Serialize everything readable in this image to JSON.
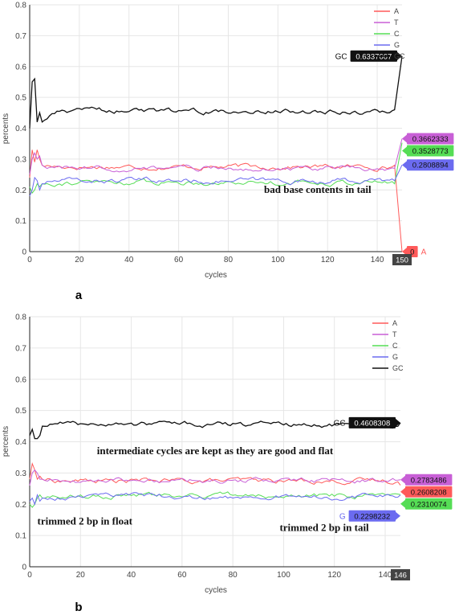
{
  "chart_data": [
    {
      "panel_label": "a",
      "type": "line",
      "xlabel": "cycles",
      "ylabel": "percents",
      "xlim": [
        0,
        150
      ],
      "ylim": [
        0,
        0.8
      ],
      "xticks": [
        "0",
        "20",
        "40",
        "60",
        "80",
        "100",
        "120",
        "140"
      ],
      "yticks": [
        "0",
        "0.1",
        "0.2",
        "0.3",
        "0.4",
        "0.5",
        "0.6",
        "0.7",
        "0.8"
      ],
      "grid": true,
      "legend_position": "top-right",
      "series": [
        {
          "name": "A",
          "color": "#ff5a5a",
          "base": 0.275,
          "start": [
            0.24,
            0.33,
            0.29,
            0.33,
            0.3,
            0.28
          ],
          "end": [
            [
              147,
              0.28
            ],
            [
              150,
              0
            ]
          ]
        },
        {
          "name": "T",
          "color": "#c85fd6",
          "base": 0.27,
          "start": [
            0.25,
            0.3,
            0.32,
            0.3,
            0.31,
            0.28
          ],
          "end": [
            [
              147,
              0.27
            ],
            [
              150,
              0.3662333
            ]
          ]
        },
        {
          "name": "C",
          "color": "#55dd55",
          "base": 0.225,
          "start": [
            0.21,
            0.19,
            0.2,
            0.22,
            0.21,
            0.22
          ],
          "end": [
            [
              147,
              0.22
            ],
            [
              150,
              0.3528773
            ]
          ]
        },
        {
          "name": "G",
          "color": "#6b6bf0",
          "base": 0.23,
          "start": [
            0.18,
            0.2,
            0.24,
            0.23,
            0.2,
            0.22
          ],
          "end": [
            [
              147,
              0.23
            ],
            [
              150,
              0.2808894
            ]
          ]
        },
        {
          "name": "GC",
          "color": "#111111",
          "base": 0.455,
          "start": [
            0.4,
            0.55,
            0.56,
            0.42,
            0.45,
            0.42
          ],
          "end": [
            [
              147,
              0.46
            ],
            [
              150,
              0.6337667
            ]
          ]
        }
      ],
      "hover_labels": [
        {
          "series": "GC",
          "value": "0.6337667",
          "side": "left"
        },
        {
          "series": "T",
          "value": "0.3662333",
          "side": "right"
        },
        {
          "series": "C",
          "value": "0.3528773",
          "side": "right"
        },
        {
          "series": "G",
          "value": "0.2808894",
          "side": "right"
        },
        {
          "series": "A",
          "value": "0",
          "side": "right"
        }
      ],
      "x_hover": "150",
      "annotations": [
        {
          "text": "bad base contents in tail",
          "x": 116,
          "y": 0.19
        }
      ]
    },
    {
      "panel_label": "b",
      "type": "line",
      "xlabel": "cycles",
      "ylabel": "percents",
      "xlim": [
        0,
        146
      ],
      "ylim": [
        0,
        0.8
      ],
      "xticks": [
        "0",
        "20",
        "40",
        "60",
        "80",
        "100",
        "120",
        "140"
      ],
      "yticks": [
        "0",
        "0.1",
        "0.2",
        "0.3",
        "0.4",
        "0.5",
        "0.6",
        "0.7",
        "0.8"
      ],
      "grid": true,
      "legend_position": "top-right",
      "series": [
        {
          "name": "A",
          "color": "#ff5a5a",
          "base": 0.275,
          "start": [
            0.28,
            0.33,
            0.31,
            0.28,
            0.29,
            0.28
          ],
          "end": [
            [
              146,
              0.2608208
            ]
          ]
        },
        {
          "name": "T",
          "color": "#c85fd6",
          "base": 0.275,
          "start": [
            0.26,
            0.3,
            0.31,
            0.3,
            0.28,
            0.28
          ],
          "end": [
            [
              146,
              0.2783486
            ]
          ]
        },
        {
          "name": "C",
          "color": "#55dd55",
          "base": 0.228,
          "start": [
            0.2,
            0.19,
            0.2,
            0.22,
            0.23,
            0.22
          ],
          "end": [
            [
              146,
              0.2310074
            ]
          ]
        },
        {
          "name": "G",
          "color": "#6b6bf0",
          "base": 0.225,
          "start": [
            0.21,
            0.22,
            0.2,
            0.23,
            0.21,
            0.22
          ],
          "end": [
            [
              146,
              0.2298232
            ]
          ]
        },
        {
          "name": "GC",
          "color": "#111111",
          "base": 0.455,
          "start": [
            0.42,
            0.44,
            0.41,
            0.41,
            0.42,
            0.45
          ],
          "end": [
            [
              146,
              0.4608308
            ]
          ]
        }
      ],
      "hover_labels": [
        {
          "series": "GC",
          "value": "0.4608308",
          "side": "left"
        },
        {
          "series": "T",
          "value": "0.2783486",
          "side": "right"
        },
        {
          "series": "A",
          "value": "0.2608208",
          "side": "right"
        },
        {
          "series": "C",
          "value": "0.2310074",
          "side": "right"
        },
        {
          "series": "G",
          "value": "0.2298232",
          "side": "left"
        }
      ],
      "x_hover": "146",
      "annotations": [
        {
          "text": "intermediate cycles are kept as they are good and flat",
          "x": 73,
          "y": 0.36
        },
        {
          "text": "trimmed 2 bp in float",
          "x": 3,
          "y": 0.135
        },
        {
          "text": "trimmed 2 bp in tail",
          "x": 116,
          "y": 0.115
        }
      ]
    }
  ]
}
